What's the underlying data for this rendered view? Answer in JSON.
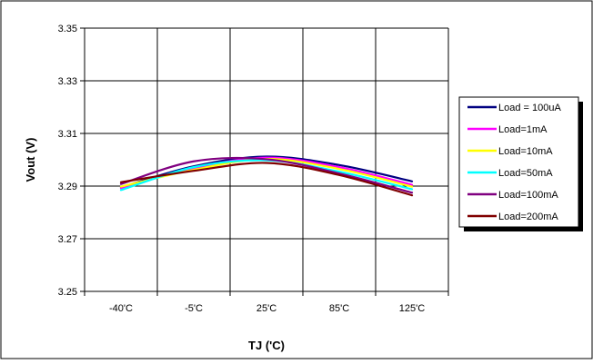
{
  "chart_data": {
    "type": "line",
    "title": "",
    "xlabel": "TJ ('C)",
    "ylabel": "Vout (V)",
    "categories": [
      "-40'C",
      "-5'C",
      "25'C",
      "85'C",
      "125'C"
    ],
    "ylim": [
      3.25,
      3.35
    ],
    "yticks": [
      "3.25",
      "3.27",
      "3.29",
      "3.31",
      "3.33",
      "3.35"
    ],
    "grid": true,
    "legend_position": "right",
    "series": [
      {
        "name": "Load = 100uA",
        "color": "#000080",
        "values": [
          3.2895,
          3.2975,
          3.3012,
          3.298,
          3.2918
        ]
      },
      {
        "name": "Load=1mA",
        "color": "#ff00ff",
        "values": [
          3.2892,
          3.2968,
          3.3008,
          3.2972,
          3.2905
        ]
      },
      {
        "name": "Load=10mA",
        "color": "#ffff00",
        "values": [
          3.2898,
          3.2962,
          3.3003,
          3.2965,
          3.2898
        ]
      },
      {
        "name": "Load=50mA",
        "color": "#00ffff",
        "values": [
          3.2885,
          3.2972,
          3.2998,
          3.2955,
          3.2888
        ]
      },
      {
        "name": "Load=100mA",
        "color": "#800080",
        "values": [
          3.2908,
          3.2994,
          3.3002,
          3.2948,
          3.2875
        ]
      },
      {
        "name": "Load=200mA",
        "color": "#800000",
        "values": [
          3.2915,
          3.2958,
          3.2988,
          3.2942,
          3.2865
        ]
      }
    ]
  }
}
